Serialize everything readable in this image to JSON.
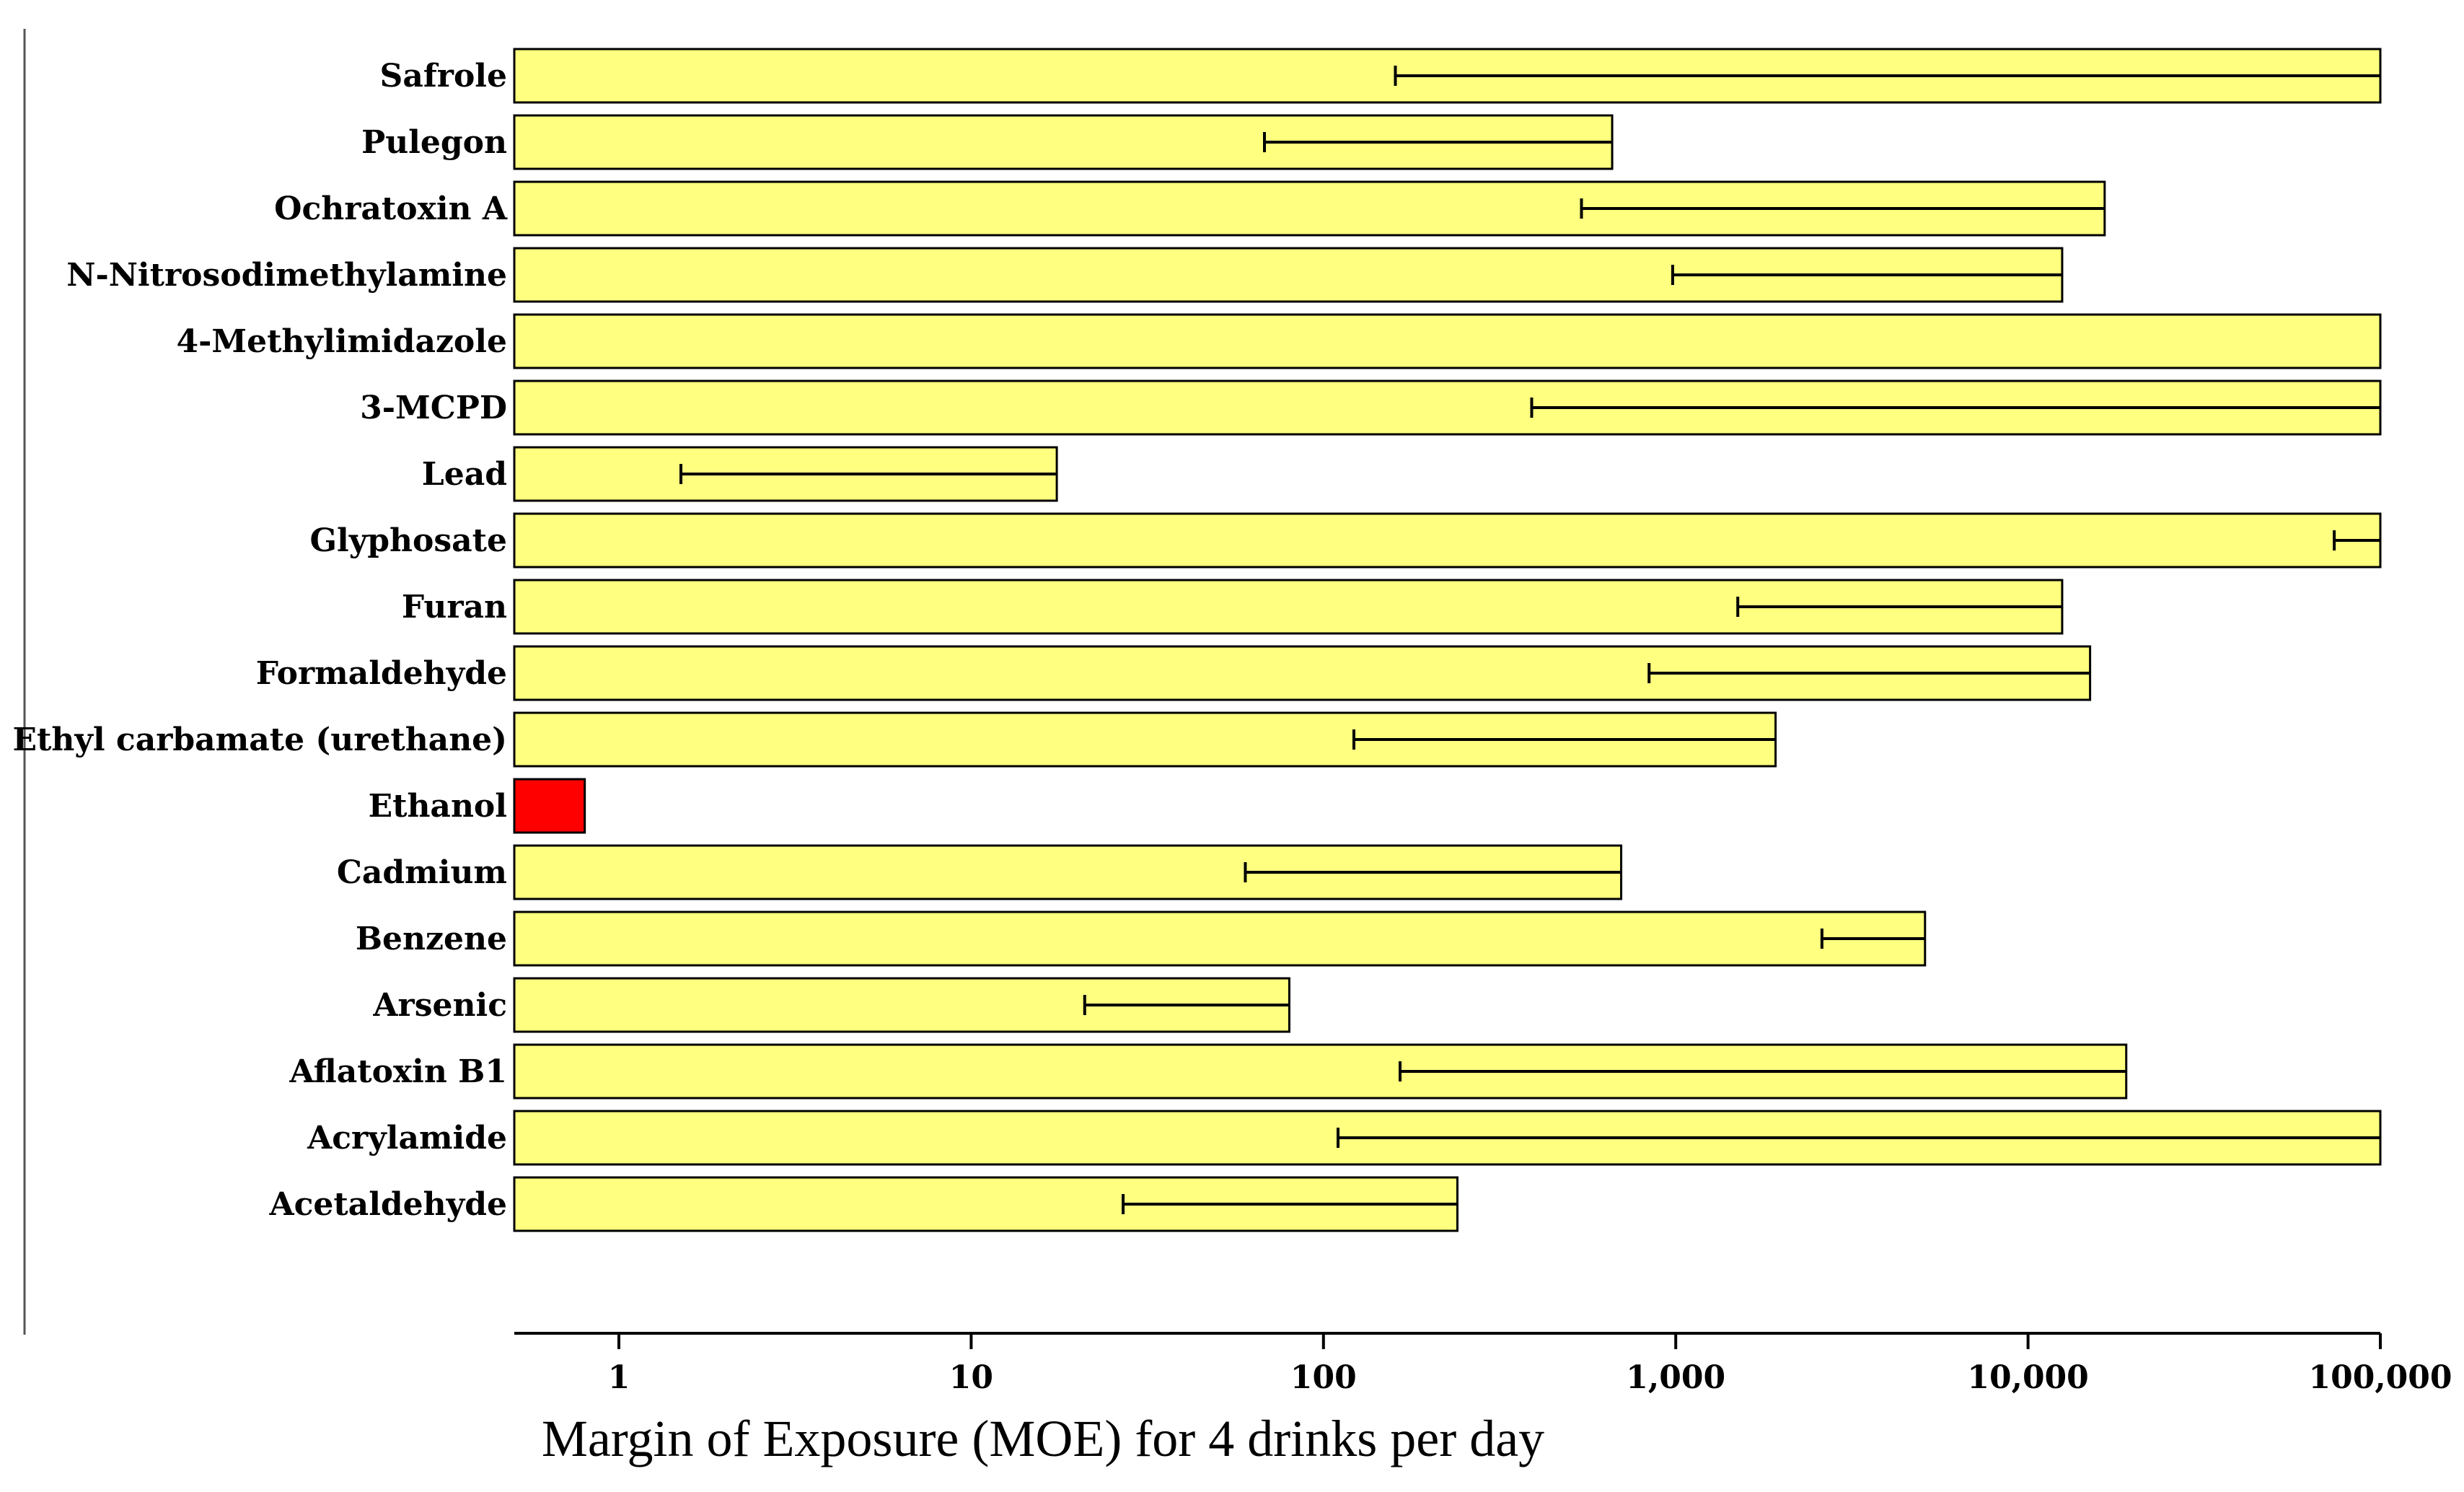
{
  "chart_data": {
    "type": "bar",
    "orientation": "horizontal",
    "scale": "log",
    "title": "",
    "xlabel": "Margin of Exposure (MOE) for 4 drinks per day",
    "ylabel": "",
    "xlim": [
      0.5,
      100000
    ],
    "ticks": [
      {
        "value": 1,
        "label": "1"
      },
      {
        "value": 10,
        "label": "10"
      },
      {
        "value": 100,
        "label": "100"
      },
      {
        "value": 1000,
        "label": "1,000"
      },
      {
        "value": 10000,
        "label": "10,000"
      },
      {
        "value": 100000,
        "label": "100,000"
      }
    ],
    "default_color": "#ffff80",
    "highlight_color": "#ff0000",
    "series": [
      {
        "name": "Safrole",
        "value": 100000,
        "err_low": 160,
        "err_high": 100000,
        "highlight": false
      },
      {
        "name": "Pulegon",
        "value": 660,
        "err_low": 68,
        "err_high": 660,
        "highlight": false
      },
      {
        "name": "Ochratoxin A",
        "value": 16500,
        "err_low": 540,
        "err_high": 16500,
        "highlight": false
      },
      {
        "name": "N-Nitrosodimethylamine",
        "value": 12500,
        "err_low": 980,
        "err_high": 12500,
        "highlight": false
      },
      {
        "name": "4-Methylimidazole",
        "value": 100000,
        "err_low": null,
        "err_high": null,
        "highlight": false
      },
      {
        "name": "3-MCPD",
        "value": 100000,
        "err_low": 390,
        "err_high": 100000,
        "highlight": false
      },
      {
        "name": "Lead",
        "value": 17.5,
        "err_low": 1.5,
        "err_high": 17.5,
        "highlight": false
      },
      {
        "name": "Glyphosate",
        "value": 100000,
        "err_low": 74000,
        "err_high": 100000,
        "highlight": false
      },
      {
        "name": "Furan",
        "value": 12500,
        "err_low": 1500,
        "err_high": 12500,
        "highlight": false
      },
      {
        "name": "Formaldehyde",
        "value": 15000,
        "err_low": 840,
        "err_high": 15000,
        "highlight": false
      },
      {
        "name": "Ethyl carbamate (urethane)",
        "value": 1920,
        "err_low": 122,
        "err_high": 1920,
        "highlight": false
      },
      {
        "name": "Ethanol",
        "value": 0.8,
        "err_low": null,
        "err_high": null,
        "highlight": true
      },
      {
        "name": "Cadmium",
        "value": 700,
        "err_low": 60,
        "err_high": 700,
        "highlight": false
      },
      {
        "name": "Benzene",
        "value": 5100,
        "err_low": 2600,
        "err_high": 5100,
        "highlight": false
      },
      {
        "name": "Arsenic",
        "value": 80,
        "err_low": 21,
        "err_high": 80,
        "highlight": false
      },
      {
        "name": "Aflatoxin B1",
        "value": 19000,
        "err_low": 165,
        "err_high": 19000,
        "highlight": false
      },
      {
        "name": "Acrylamide",
        "value": 100000,
        "err_low": 110,
        "err_high": 100000,
        "highlight": false
      },
      {
        "name": "Acetaldehyde",
        "value": 240,
        "err_low": 27,
        "err_high": 240,
        "highlight": false
      }
    ]
  }
}
